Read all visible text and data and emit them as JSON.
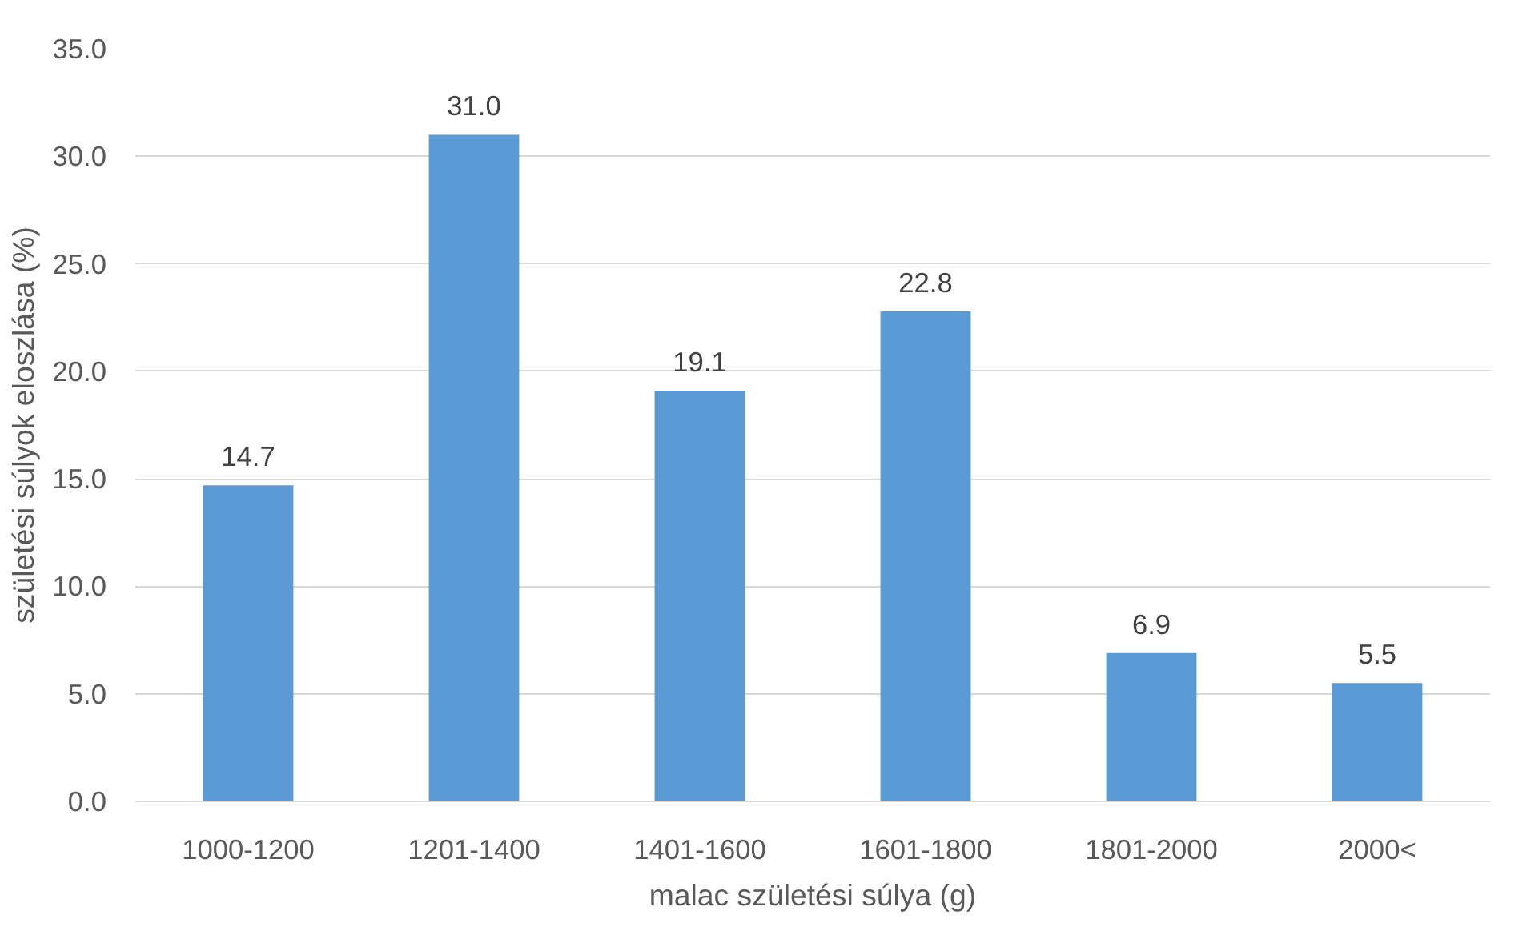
{
  "chart_data": {
    "type": "bar",
    "xlabel": "malac születési súlya (g)",
    "ylabel": "születési súlyok eloszlása (%)",
    "categories": [
      "1000-1200",
      "1201-1400",
      "1401-1600",
      "1601-1800",
      "1801-2000",
      "2000<"
    ],
    "values": [
      14.7,
      31.0,
      19.1,
      22.8,
      6.9,
      5.5
    ],
    "value_labels": [
      "14.7",
      "31.0",
      "19.1",
      "22.8",
      "6.9",
      "5.5"
    ],
    "color": "#5b9bd5",
    "ylim": [
      0,
      35
    ],
    "yticks": [
      {
        "value": 0,
        "label": "0.0"
      },
      {
        "value": 5,
        "label": "5.0"
      },
      {
        "value": 10,
        "label": "10.0"
      },
      {
        "value": 15,
        "label": "15.0"
      },
      {
        "value": 20,
        "label": "20.0"
      },
      {
        "value": 25,
        "label": "25.0"
      },
      {
        "value": 30,
        "label": "30.0"
      },
      {
        "value": 35,
        "label": "35.0"
      }
    ],
    "grid": "y"
  }
}
